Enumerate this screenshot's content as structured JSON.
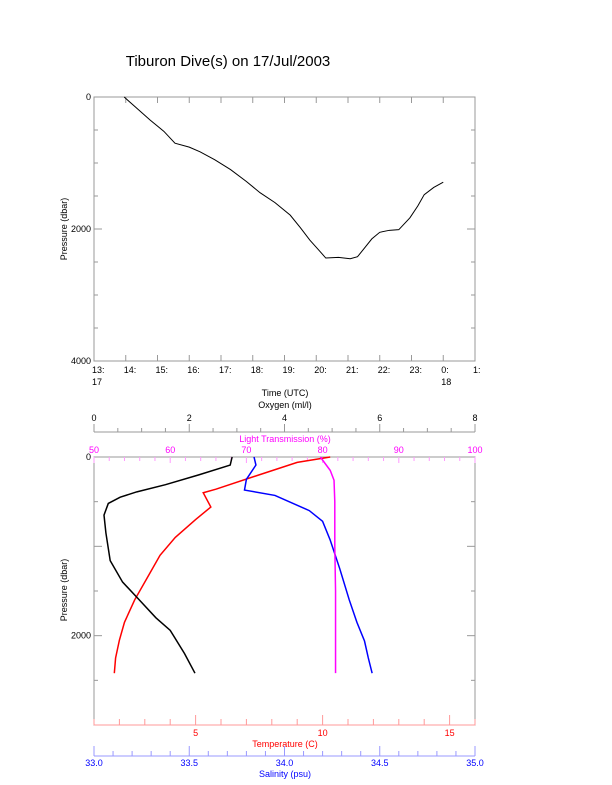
{
  "title": "Tiburon Dive(s) on 17/Jul/2003",
  "chart_data": [
    {
      "type": "line",
      "xlabel": "Time (UTC)",
      "ylabel": "Pressure (dbar)",
      "xlim": [
        13,
        25
      ],
      "ylim": [
        4000,
        0
      ],
      "x_tick_labels": [
        "13:\n17",
        "14:",
        "15:",
        "16:",
        "17:",
        "18:",
        "19:",
        "20:",
        "21:",
        "22:",
        "23:",
        "0:\n18",
        "1:"
      ],
      "y_tick_labels": [
        "0",
        "2000",
        "4000"
      ],
      "series": [
        {
          "name": "Pressure",
          "color": "#000000",
          "x": [
            13.95,
            14.3,
            14.77,
            15.2,
            15.55,
            16.0,
            16.34,
            16.8,
            17.3,
            17.8,
            18.23,
            18.7,
            19.18,
            19.5,
            19.8,
            20.1,
            20.3,
            20.7,
            21.07,
            21.3,
            21.5,
            21.75,
            22.0,
            22.3,
            22.6,
            22.95,
            23.2,
            23.4,
            23.7,
            24.0
          ],
          "y": [
            0,
            150,
            350,
            520,
            700,
            760,
            830,
            950,
            1100,
            1280,
            1450,
            1600,
            1790,
            1980,
            2170,
            2330,
            2440,
            2430,
            2450,
            2420,
            2300,
            2150,
            2050,
            2020,
            2010,
            1830,
            1650,
            1480,
            1370,
            1290
          ]
        }
      ]
    },
    {
      "type": "line",
      "ylabel": "Pressure (dbar)",
      "ylim": [
        3000,
        0
      ],
      "y_tick_labels": [
        "0",
        "2000"
      ],
      "axes": [
        {
          "name": "oxygen",
          "label": "Oxygen (ml/l)",
          "range": [
            0,
            8
          ],
          "ticks": [
            "0",
            "2",
            "4",
            "6",
            "8"
          ],
          "position": "top",
          "color": "#000000"
        },
        {
          "name": "light",
          "label": "Light Transmission (%)",
          "range": [
            50,
            100
          ],
          "ticks": [
            "50",
            "60",
            "70",
            "80",
            "90",
            "100"
          ],
          "position": "top",
          "color": "#ff00ff"
        },
        {
          "name": "temp",
          "label": "Temperature (C)",
          "range": [
            1,
            16
          ],
          "ticks": [
            "5",
            "10",
            "15"
          ],
          "position": "bottom",
          "color": "#ff0000"
        },
        {
          "name": "sal",
          "label": "Salinity (psu)",
          "range": [
            33,
            35
          ],
          "ticks": [
            "33.0",
            "33.5",
            "34.0",
            "34.5",
            "35.0"
          ],
          "position": "bottom",
          "color": "#0000ff"
        }
      ],
      "series": [
        {
          "name": "Temperature",
          "axis": "temp",
          "color": "#ff0000",
          "x": [
            10.3,
            9.0,
            7.5,
            5.8,
            5.3,
            5.6,
            5.0,
            4.2,
            3.6,
            3.1,
            2.6,
            2.2,
            2.0,
            1.85,
            1.8
          ],
          "y": [
            0,
            60,
            200,
            360,
            400,
            560,
            700,
            900,
            1100,
            1350,
            1600,
            1850,
            2050,
            2250,
            2420
          ]
        },
        {
          "name": "Salinity",
          "axis": "sal",
          "color": "#0000ff",
          "x": [
            33.84,
            33.85,
            33.8,
            33.79,
            33.95,
            34.13,
            34.2,
            34.24,
            34.29,
            34.34,
            34.38,
            34.42,
            34.44,
            34.46
          ],
          "y": [
            0,
            90,
            250,
            370,
            430,
            600,
            720,
            930,
            1250,
            1600,
            1850,
            2060,
            2250,
            2420
          ]
        },
        {
          "name": "Light Transmission",
          "axis": "light",
          "color": "#ff00ff",
          "x": [
            79.7,
            81.0,
            81.5,
            81.6,
            81.6,
            81.7,
            81.7,
            81.7
          ],
          "y": [
            0,
            150,
            260,
            500,
            1000,
            1500,
            2000,
            2420
          ]
        },
        {
          "name": "Oxygen",
          "axis": "oxygen",
          "color": "#000000",
          "x": [
            2.9,
            2.86,
            2.2,
            1.5,
            0.9,
            0.55,
            0.3,
            0.21,
            0.25,
            0.34,
            0.6,
            0.97,
            1.3,
            1.6,
            1.9,
            2.12
          ],
          "y": [
            0,
            90,
            200,
            310,
            390,
            450,
            520,
            650,
            850,
            1160,
            1400,
            1610,
            1800,
            1940,
            2200,
            2420
          ]
        }
      ]
    }
  ]
}
